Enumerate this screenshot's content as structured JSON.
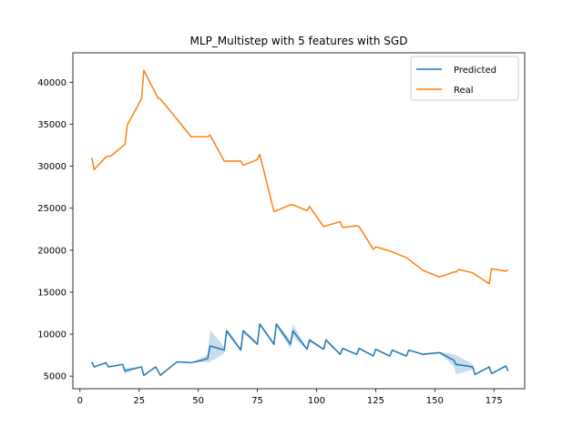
{
  "chart_data": {
    "type": "line",
    "title": "MLP_Multistep with 5 features with SGD",
    "xlabel": "",
    "ylabel": "",
    "xlim": [
      -3,
      188
    ],
    "ylim": [
      3500,
      43500
    ],
    "xticks": [
      0,
      25,
      50,
      75,
      100,
      125,
      150,
      175
    ],
    "yticks": [
      5000,
      10000,
      15000,
      20000,
      25000,
      30000,
      35000,
      40000
    ],
    "grid": false,
    "legend_position": "upper right",
    "series": [
      {
        "name": "Predicted",
        "color": "#1f77b4",
        "x": [
          5,
          6,
          11,
          12,
          18,
          19,
          20,
          26,
          27,
          32,
          34,
          41,
          47,
          53,
          54,
          55,
          61,
          62,
          68,
          69,
          75,
          76,
          82,
          83,
          89,
          90,
          96,
          97,
          103,
          104,
          110,
          111,
          117,
          118,
          124,
          125,
          131,
          132,
          138,
          139,
          145,
          152,
          158,
          159,
          166,
          167,
          173,
          174,
          180,
          181
        ],
        "y": [
          6700,
          6100,
          6600,
          6100,
          6400,
          5600,
          5700,
          6100,
          5100,
          6100,
          5100,
          6700,
          6600,
          7000,
          7100,
          8600,
          8100,
          10400,
          8100,
          10400,
          8800,
          11200,
          8800,
          11200,
          8800,
          10400,
          8200,
          9300,
          8200,
          9300,
          7600,
          8300,
          7600,
          8300,
          7400,
          8200,
          7400,
          8100,
          7400,
          8100,
          7600,
          7800,
          6900,
          6400,
          6100,
          5200,
          6100,
          5300,
          6200,
          5600
        ],
        "band_lower": [
          6700,
          6100,
          6600,
          6100,
          6400,
          5200,
          5400,
          6100,
          5100,
          6100,
          5100,
          6700,
          6600,
          6700,
          6600,
          6700,
          7700,
          10100,
          7900,
          10200,
          8600,
          11000,
          8600,
          11000,
          8200,
          9700,
          8100,
          9100,
          8100,
          9100,
          7500,
          8200,
          7500,
          8200,
          7300,
          8100,
          7300,
          8000,
          7300,
          8000,
          7500,
          7700,
          6200,
          5200,
          5800,
          5200,
          6000,
          5200,
          6100,
          5500
        ],
        "band_upper": [
          6700,
          6100,
          6600,
          6100,
          6400,
          6000,
          6000,
          6100,
          5100,
          6100,
          5100,
          6700,
          6600,
          7400,
          7700,
          10500,
          8500,
          10700,
          8300,
          10600,
          9000,
          11400,
          9000,
          11400,
          9300,
          11200,
          8300,
          9500,
          8300,
          9500,
          7700,
          8400,
          7700,
          8400,
          7500,
          8300,
          7500,
          8200,
          7500,
          8200,
          7700,
          7900,
          7600,
          7500,
          6400,
          5200,
          6200,
          5400,
          6300,
          5700
        ]
      },
      {
        "name": "Real",
        "color": "#ff7f0e",
        "x": [
          5,
          6,
          11,
          12,
          13,
          19,
          20,
          26,
          27,
          33,
          34,
          41,
          47,
          54,
          55,
          61,
          68,
          69,
          75,
          76,
          82,
          83,
          89,
          90,
          96,
          97,
          103,
          104,
          110,
          111,
          117,
          118,
          124,
          125,
          131,
          132,
          138,
          139,
          145,
          152,
          158,
          159,
          160,
          166,
          173,
          174,
          180,
          181
        ],
        "y": [
          31000,
          29600,
          31100,
          31200,
          31200,
          32600,
          34900,
          38000,
          41400,
          38100,
          38000,
          35600,
          33500,
          33500,
          33700,
          30600,
          30600,
          30100,
          30800,
          31400,
          24600,
          24700,
          25400,
          25400,
          24700,
          25200,
          22800,
          22900,
          23400,
          22700,
          22900,
          22800,
          20100,
          20400,
          19900,
          19800,
          19100,
          18900,
          17600,
          16800,
          17400,
          17400,
          17700,
          17300,
          16000,
          17800,
          17500,
          17700
        ]
      }
    ]
  }
}
